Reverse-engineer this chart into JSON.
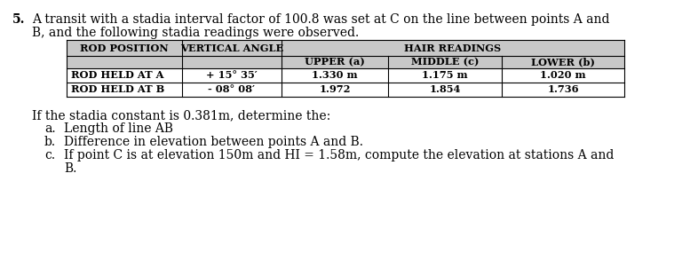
{
  "problem_number": "5.",
  "intro_line1": "A transit with a stadia interval factor of 100.8 was set at C on the line between points A and",
  "intro_line2": "B, and the following stadia readings were observed.",
  "table_header1_cols": [
    "ROD POSITION",
    "VERTICAL ANGLE",
    "HAIR READINGS"
  ],
  "table_header2_cols": [
    "UPPER (a)",
    "MIDDLE (c)",
    "LOWER (b)"
  ],
  "table_row1": [
    "ROD HELD AT A",
    "+ 15° 35′",
    "1.330 m",
    "1.175 m",
    "1.020 m"
  ],
  "table_row2": [
    "ROD HELD AT B",
    "- 08° 08′",
    "1.972",
    "1.854",
    "1.736"
  ],
  "questions_intro": "If the stadia constant is 0.381m, determine the:",
  "q_label_a": "a.",
  "q_label_b": "b.",
  "q_label_c": "c.",
  "q_text_a": "Length of line AB",
  "q_text_b": "Difference in elevation between points A and B.",
  "q_text_c1": "If point C is at elevation 150m and HI = 1.58m, compute the elevation at stations A and",
  "q_text_c2": "B.",
  "bg_color": "#ffffff",
  "text_color": "#000000",
  "header_bg": "#c8c8c8",
  "font_family": "DejaVu Serif",
  "font_size_intro": 10.0,
  "font_size_table": 8.2,
  "font_size_questions": 10.0
}
